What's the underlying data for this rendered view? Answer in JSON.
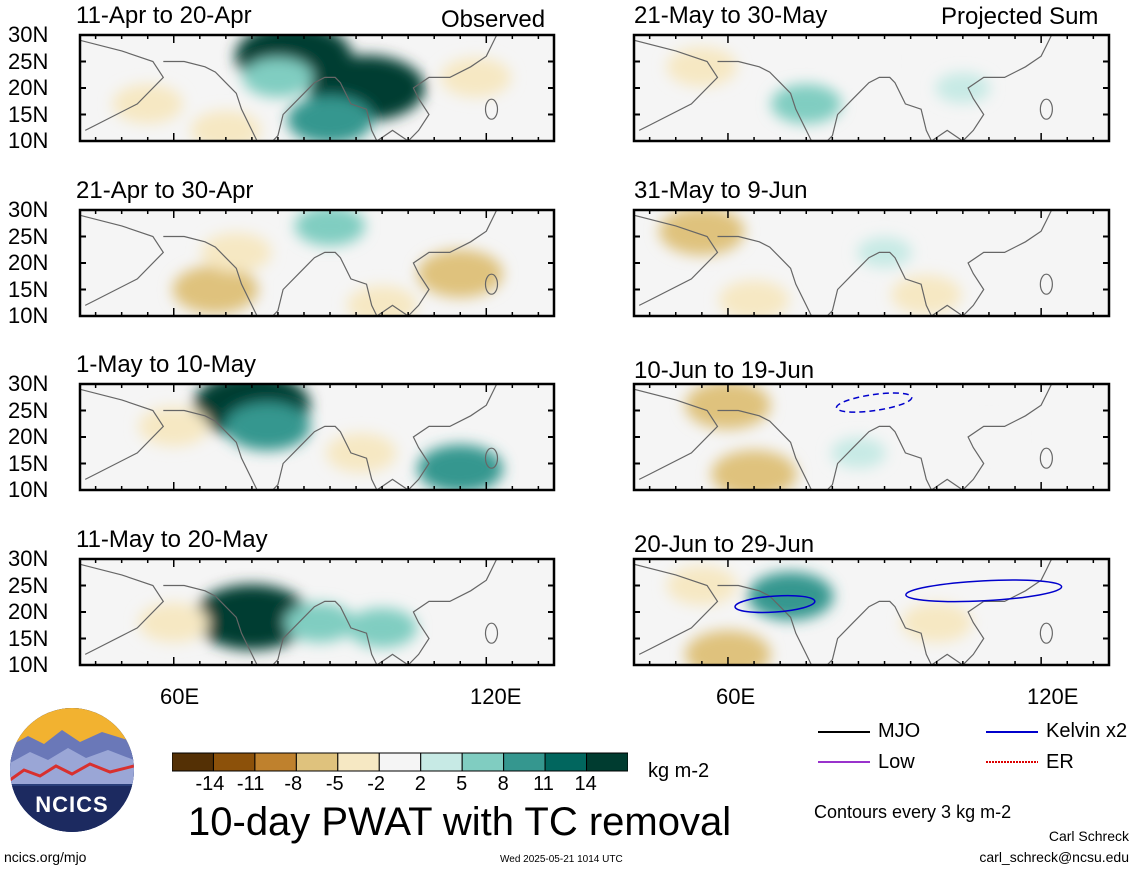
{
  "header": {
    "left_tag": "Observed",
    "right_tag": "Projected Sum"
  },
  "panels": [
    {
      "title": "11-Apr to 20-Apr"
    },
    {
      "title": "21-May to 30-May"
    },
    {
      "title": "21-Apr to 30-Apr"
    },
    {
      "title": "31-May to 9-Jun"
    },
    {
      "title": "1-May to 10-May"
    },
    {
      "title": "10-Jun to 19-Jun"
    },
    {
      "title": "11-May to 20-May"
    },
    {
      "title": "20-Jun to 29-Jun"
    }
  ],
  "lat_ticks": [
    "30N",
    "25N",
    "20N",
    "15N",
    "10N"
  ],
  "lon_ticks": [
    "60E",
    "120E"
  ],
  "colorbar": {
    "ticks": [
      "-14",
      "-11",
      "-8",
      "-5",
      "-2",
      "2",
      "5",
      "8",
      "11",
      "14"
    ],
    "units": "kg m-2",
    "colors": [
      "#543005",
      "#8c510a",
      "#bf812d",
      "#dfc27d",
      "#f6e8c3",
      "#f5f5f5",
      "#c7eae5",
      "#80cdc1",
      "#35978f",
      "#01665e",
      "#003c30"
    ]
  },
  "title": "10-day PWAT with TC removal",
  "legend": {
    "items": [
      {
        "label": "MJO",
        "color": "#000000"
      },
      {
        "label": "Kelvin x2",
        "color": "#0000cc"
      },
      {
        "label": "Low",
        "color": "#9933cc"
      },
      {
        "label": "ER",
        "color": "#dd0000"
      }
    ],
    "note": "Contours every 3 kg m-2"
  },
  "credit": {
    "name": "Carl Schreck",
    "email": "carl_schreck@ncsu.edu"
  },
  "footer": {
    "url": "ncics.org/mjo",
    "timestamp": "Wed 2025-05-21 1014 UTC"
  },
  "logo": {
    "text": "NCICS"
  },
  "chart_data": {
    "type": "heatmap",
    "variable": "10-day PWAT anomaly with TC removal",
    "units": "kg m-2",
    "colorbar_levels": [
      -14,
      -11,
      -8,
      -5,
      -2,
      2,
      5,
      8,
      11,
      14
    ],
    "lat_range": [
      10,
      30
    ],
    "lon_ticks": [
      60,
      120
    ],
    "panels": [
      {
        "title": "11-Apr to 20-Apr",
        "kind": "Observed",
        "features": [
          {
            "lon": 83,
            "lat": 26,
            "value": 14
          },
          {
            "lon": 97,
            "lat": 20,
            "value": 14
          },
          {
            "lon": 80,
            "lat": 22,
            "value": 5
          },
          {
            "lon": 90,
            "lat": 14,
            "value": 8
          },
          {
            "lon": 55,
            "lat": 17,
            "value": -5
          },
          {
            "lon": 70,
            "lat": 12,
            "value": -5
          },
          {
            "lon": 118,
            "lat": 22,
            "value": -5
          }
        ]
      },
      {
        "title": "21-Apr to 30-Apr",
        "kind": "Observed",
        "features": [
          {
            "lon": 115,
            "lat": 18,
            "value": -8
          },
          {
            "lon": 68,
            "lat": 15,
            "value": -8
          },
          {
            "lon": 90,
            "lat": 27,
            "value": 5
          },
          {
            "lon": 72,
            "lat": 22,
            "value": -5
          },
          {
            "lon": 100,
            "lat": 12,
            "value": -5
          }
        ]
      },
      {
        "title": "1-May to 10-May",
        "kind": "Observed",
        "features": [
          {
            "lon": 75,
            "lat": 26,
            "value": 14
          },
          {
            "lon": 78,
            "lat": 22,
            "value": 8
          },
          {
            "lon": 115,
            "lat": 14,
            "value": 8
          },
          {
            "lon": 96,
            "lat": 17,
            "value": -5
          },
          {
            "lon": 60,
            "lat": 22,
            "value": -5
          }
        ]
      },
      {
        "title": "11-May to 20-May",
        "kind": "Observed",
        "features": [
          {
            "lon": 75,
            "lat": 19,
            "value": 14
          },
          {
            "lon": 88,
            "lat": 18,
            "value": 5
          },
          {
            "lon": 60,
            "lat": 18,
            "value": -5
          },
          {
            "lon": 100,
            "lat": 17,
            "value": 5
          }
        ]
      },
      {
        "title": "21-May to 30-May",
        "kind": "Projected Sum",
        "features": [
          {
            "lon": 55,
            "lat": 24,
            "value": -5
          },
          {
            "lon": 75,
            "lat": 17,
            "value": 5
          },
          {
            "lon": 85,
            "lat": 25,
            "value": -2
          },
          {
            "lon": 105,
            "lat": 20,
            "value": 2
          }
        ]
      },
      {
        "title": "31-May to 9-Jun",
        "kind": "Projected Sum",
        "features": [
          {
            "lon": 55,
            "lat": 26,
            "value": -8
          },
          {
            "lon": 65,
            "lat": 13,
            "value": -5
          },
          {
            "lon": 98,
            "lat": 14,
            "value": -5
          },
          {
            "lon": 90,
            "lat": 22,
            "value": 2
          }
        ]
      },
      {
        "title": "10-Jun to 19-Jun",
        "kind": "Projected Sum",
        "features": [
          {
            "lon": 60,
            "lat": 26,
            "value": -8
          },
          {
            "lon": 65,
            "lat": 13,
            "value": -8
          },
          {
            "lon": 85,
            "lat": 17,
            "value": 2
          },
          {
            "lon": 110,
            "lat": 20,
            "value": -2
          }
        ]
      },
      {
        "title": "20-Jun to 29-Jun",
        "kind": "Projected Sum",
        "features": [
          {
            "lon": 72,
            "lat": 23,
            "value": 8
          },
          {
            "lon": 60,
            "lat": 12,
            "value": -8
          },
          {
            "lon": 100,
            "lat": 18,
            "value": -5
          },
          {
            "lon": 55,
            "lat": 25,
            "value": -5
          },
          {
            "lon": 108,
            "lat": 25,
            "value": -2
          }
        ]
      }
    ],
    "wave_contours": [
      {
        "panel": "10-Jun to 19-Jun",
        "wave": "Kelvin x2",
        "style": "dashed",
        "sign": "negative"
      },
      {
        "panel": "11-May to 20-May",
        "wave": "Kelvin x2",
        "style": "solid",
        "sign": "positive"
      },
      {
        "panel": "20-Jun to 29-Jun",
        "wave": "Kelvin x2",
        "style": "solid",
        "sign": "positive"
      }
    ]
  }
}
